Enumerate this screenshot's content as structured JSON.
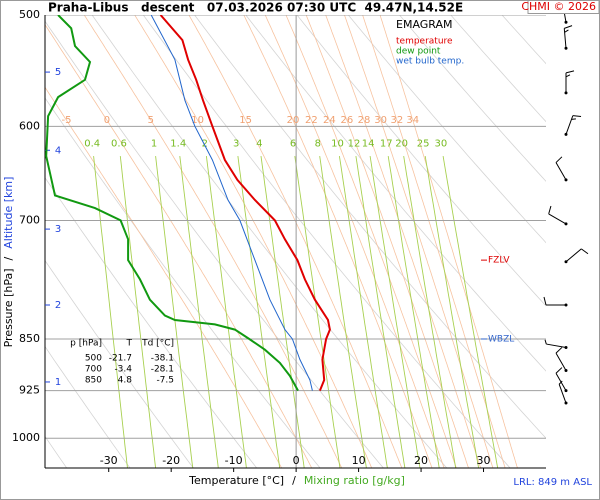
{
  "chart_data": {
    "type": "emagram",
    "title": "Praha-Libus   descent   07.03.2026 07:30 UTC  49.47N,14.52E",
    "credit": "CHMI © 2026",
    "note": "LRL: 849 m ASL",
    "xlabel": "Temperature [°C]",
    "xlabel_separator": "/",
    "xlabel2": "Mixing ratio [g/kg]",
    "ylabel": "Pressure [hPa]",
    "ylabel_separator": "/",
    "ylabel2": "Altitude [km]",
    "legend_title": "EMAGRAM",
    "legend": "upper right",
    "xlim": [
      -40.2,
      40
    ],
    "xticks": [
      -30,
      -20,
      -10,
      0,
      10,
      20,
      30
    ],
    "x_zero_line": true,
    "ylim": [
      1050,
      500
    ],
    "log_y": true,
    "yticks": [
      500,
      600,
      700,
      850,
      925,
      1000
    ],
    "grid": true,
    "altitude_ticks": [
      {
        "value": 5,
        "pressure": 549
      },
      {
        "value": 4,
        "pressure": 624
      },
      {
        "value": 3,
        "pressure": 710
      },
      {
        "value": 2,
        "pressure": 804
      },
      {
        "value": 1,
        "pressure": 912
      }
    ],
    "series": [
      {
        "name": "temperature",
        "color": "#e00000",
        "pressure": [
          500,
          521,
          538,
          556,
          575,
          600,
          634,
          655,
          677,
          700,
          722,
          747,
          771,
          797,
          824,
          837,
          850,
          879,
          909,
          925
        ],
        "values": [
          -21.7,
          -18.2,
          -17.3,
          -16.0,
          -14.9,
          -13.4,
          -11.4,
          -9.4,
          -6.6,
          -3.4,
          -1.8,
          0.2,
          1.4,
          3.0,
          5.1,
          5.4,
          4.8,
          4.2,
          4.5,
          3.8
        ]
      },
      {
        "name": "dew point",
        "color": "#119911",
        "pressure": [
          500,
          511,
          526,
          540,
          556,
          572,
          590,
          630,
          672,
          686,
          700,
          722,
          747,
          771,
          797,
          818,
          824,
          830,
          837,
          850,
          865,
          884,
          903,
          925
        ],
        "values": [
          -38.1,
          -36,
          -35.4,
          -33,
          -33.8,
          -38.1,
          -39.7,
          -40,
          -38.6,
          -32.2,
          -28.1,
          -26.9,
          -26.9,
          -25,
          -23.4,
          -21,
          -19.4,
          -13,
          -9.8,
          -7.5,
          -5,
          -2.6,
          -1,
          0.3
        ]
      },
      {
        "name": "wet bulb temp.",
        "color": "#2266cc",
        "pressure": [
          500,
          538,
          575,
          600,
          634,
          677,
          700,
          747,
          797,
          837,
          850,
          879,
          909,
          925
        ],
        "values": [
          -23.2,
          -19.4,
          -17.8,
          -16.2,
          -13.4,
          -10.9,
          -9.0,
          -6.6,
          -4.2,
          -1.8,
          -0.6,
          0.6,
          2.2,
          2.6
        ]
      }
    ],
    "moist_adiabats": [
      -5,
      0,
      5,
      10,
      15,
      20,
      22,
      24,
      26,
      28,
      30,
      32,
      34
    ],
    "mixing_ratio_lines": [
      0.4,
      0.6,
      1,
      1.4,
      2,
      3,
      4,
      6,
      8,
      10,
      12,
      14,
      17,
      20,
      25,
      30
    ],
    "levels": [
      {
        "name": "FZLV",
        "pressure": 747,
        "color": "#dd0000"
      },
      {
        "name": "WBZL",
        "pressure": 850,
        "color": "#3366cc"
      }
    ],
    "sounding_table": {
      "columns": [
        "p [hPa]",
        "T",
        "Td [°C]"
      ],
      "rows": [
        [
          500,
          -21.7,
          -38.1
        ],
        [
          700,
          -3.4,
          -28.1
        ],
        [
          850,
          4.8,
          -7.5
        ]
      ]
    },
    "wind": {
      "pressure": [
        506,
        528,
        568,
        608,
        655,
        704,
        749,
        804,
        862,
        895,
        925,
        944
      ],
      "direction": [
        350,
        355,
        0,
        20,
        330,
        300,
        50,
        270,
        280,
        330,
        330,
        340
      ],
      "speed": [
        15,
        15,
        15,
        15,
        10,
        10,
        10,
        10,
        5,
        10,
        10,
        5
      ]
    }
  }
}
